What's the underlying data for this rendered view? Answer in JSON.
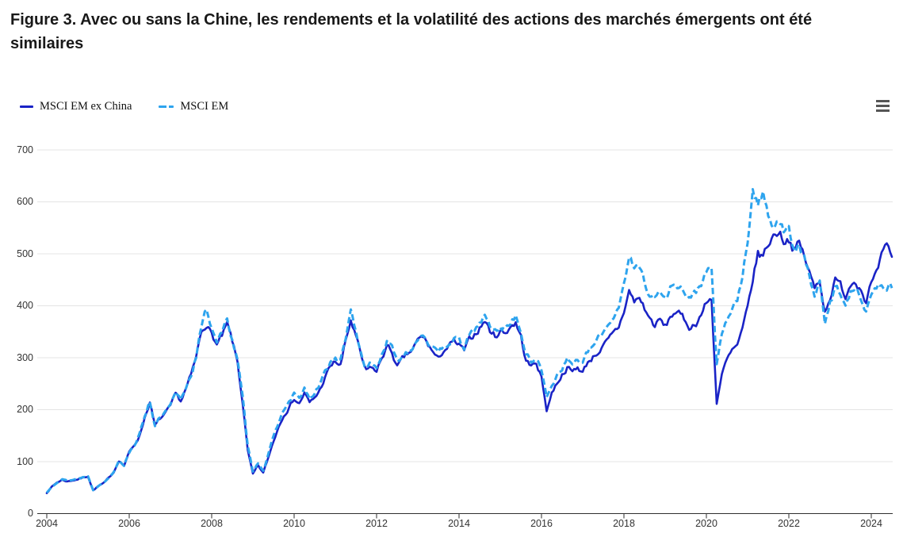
{
  "title": "Figure 3. Avec ou sans la Chine, les rendements et la volatilité des actions des marchés émergents ont été similaires",
  "legend": [
    {
      "label": "MSCI EM ex China",
      "color": "#1a23c6",
      "dash": "solid"
    },
    {
      "label": "MSCI EM",
      "color": "#2ea4ee",
      "dash": "dashed"
    }
  ],
  "icons": {
    "context_menu": "hamburger-menu"
  },
  "colors": {
    "series_dark_blue": "#1a23c6",
    "series_light_blue": "#2ea4ee",
    "gridline": "#e4e4e4",
    "axis_line": "#2e2e2e",
    "tick_label": "#333333",
    "title_text": "#191919",
    "menu_icon": "#555555"
  },
  "chart_data": {
    "type": "line",
    "title": "Figure 3. Avec ou sans la Chine, les rendements et la volatilité des actions des marchés émergents ont été similaires",
    "xlabel": "",
    "ylabel": "",
    "x_unit": "year",
    "x_start": 2004.0,
    "x_step": 0.125,
    "x_end": 2024.5,
    "xticks": [
      2004,
      2006,
      2008,
      2010,
      2012,
      2014,
      2016,
      2018,
      2020,
      2022,
      2024
    ],
    "yticks": [
      0,
      100,
      200,
      300,
      400,
      500,
      600,
      700
    ],
    "ylim": [
      0,
      700
    ],
    "grid": true,
    "legend_position": "top-left",
    "series": [
      {
        "name": "MSCI EM ex China",
        "color": "#1a23c6",
        "style": "solid",
        "values": [
          40,
          52,
          60,
          65,
          62,
          64,
          66,
          69,
          72,
          45,
          53,
          58,
          68,
          80,
          103,
          93,
          118,
          132,
          150,
          185,
          215,
          168,
          182,
          192,
          205,
          228,
          216,
          240,
          265,
          300,
          350,
          368,
          345,
          325,
          340,
          362,
          330,
          290,
          215,
          120,
          75,
          92,
          78,
          108,
          140,
          168,
          192,
          205,
          222,
          212,
          232,
          212,
          222,
          238,
          262,
          282,
          292,
          285,
          330,
          372,
          340,
          300,
          272,
          282,
          272,
          300,
          322,
          310,
          282,
          295,
          305,
          315,
          332,
          340,
          325,
          310,
          295,
          315,
          322,
          330,
          322,
          312,
          332,
          345,
          358,
          372,
          352,
          342,
          352,
          348,
          362,
          368,
          340,
          295,
          282,
          292,
          262,
          200,
          232,
          252,
          268,
          282,
          272,
          282,
          272,
          292,
          302,
          312,
          322,
          332,
          345,
          358,
          390,
          428,
          408,
          415,
          395,
          375,
          362,
          372,
          358,
          378,
          390,
          380,
          368,
          358,
          368,
          385,
          405,
          412,
          215,
          268,
          295,
          312,
          322,
          352,
          392,
          450,
          500,
          495,
          520,
          535,
          546,
          528,
          532,
          508,
          518,
          495,
          462,
          432,
          452,
          390,
          420,
          448,
          438,
          420,
          445,
          452,
          435,
          412,
          442,
          455,
          492,
          508,
          495
        ]
      },
      {
        "name": "MSCI EM",
        "color": "#2ea4ee",
        "style": "dashed",
        "values": [
          40,
          53,
          61,
          66,
          63,
          65,
          67,
          70,
          72,
          46,
          54,
          59,
          69,
          81,
          104,
          94,
          119,
          133,
          152,
          188,
          218,
          170,
          184,
          194,
          207,
          230,
          218,
          243,
          268,
          305,
          358,
          392,
          360,
          335,
          350,
          370,
          338,
          296,
          222,
          128,
          82,
          98,
          84,
          114,
          147,
          176,
          200,
          214,
          230,
          220,
          240,
          220,
          230,
          247,
          272,
          292,
          300,
          293,
          340,
          384,
          350,
          308,
          280,
          290,
          280,
          308,
          330,
          318,
          290,
          303,
          313,
          323,
          340,
          348,
          333,
          318,
          302,
          322,
          330,
          338,
          330,
          320,
          340,
          353,
          366,
          380,
          360,
          350,
          360,
          356,
          372,
          378,
          350,
          305,
          292,
          302,
          275,
          222,
          250,
          268,
          283,
          297,
          288,
          298,
          288,
          310,
          322,
          335,
          350,
          365,
          382,
          400,
          445,
          500,
          468,
          475,
          448,
          425,
          415,
          428,
          412,
          432,
          448,
          438,
          420,
          412,
          425,
          445,
          462,
          470,
          285,
          340,
          372,
          395,
          412,
          452,
          520,
          628,
          598,
          612,
          580,
          560,
          570,
          548,
          545,
          505,
          512,
          488,
          455,
          425,
          442,
          360,
          405,
          435,
          425,
          408,
          428,
          432,
          418,
          398,
          425,
          428,
          442,
          440,
          436
        ]
      }
    ]
  }
}
